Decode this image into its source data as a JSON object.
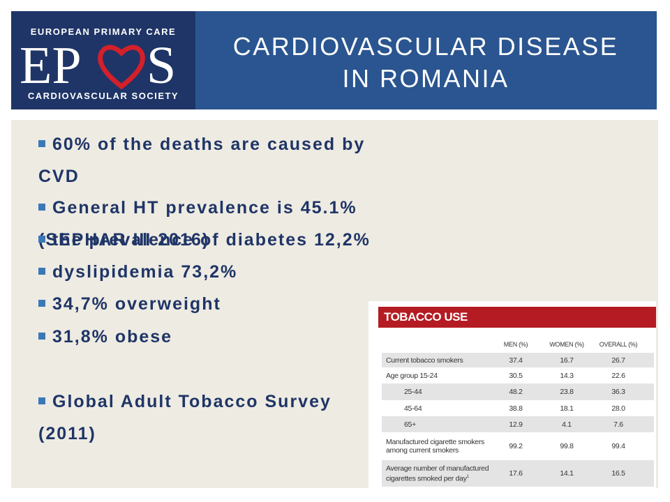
{
  "header": {
    "logo": {
      "top": "EUROPEAN PRIMARY CARE",
      "left": "EP",
      "right": "S",
      "bottom": "CARDIOVASCULAR SOCIETY"
    },
    "title": [
      "CARDIOVASCULAR DISEASE",
      "IN ROMANIA"
    ]
  },
  "bullets": [
    "60% of the deaths are caused by CVD",
    "General HT prevalence is 45.1% (SEPHAR III 2016)",
    "the prevalence of diabetes 12,2%",
    "dyslipidemia  73,2%",
    "34,7% overweight",
    "31,8% obese",
    "Global Adult Tobacco Survey (2011)"
  ],
  "table": {
    "title": "TOBACCO USE",
    "columns": [
      "MEN (%)",
      "WOMEN (%)",
      "OVERALL (%)"
    ],
    "rows": [
      {
        "label": "Current tobacco smokers",
        "values": [
          "37.4",
          "16.7",
          "26.7"
        ]
      },
      {
        "label": "Age group 15-24",
        "values": [
          "30.5",
          "14.3",
          "22.6"
        ]
      },
      {
        "label": "25-44",
        "values": [
          "48.2",
          "23.8",
          "36.3"
        ]
      },
      {
        "label": "45-64",
        "values": [
          "38.8",
          "18.1",
          "28.0"
        ]
      },
      {
        "label": "65+",
        "values": [
          "12.9",
          "4.1",
          "7.6"
        ]
      },
      {
        "label": "Manufactured cigarette smokers among current smokers",
        "values": [
          "99.2",
          "99.8",
          "99.4"
        ]
      },
      {
        "label": "Average number of manufactured cigarettes smoked per day",
        "note": "1",
        "values": [
          "17.6",
          "14.1",
          "16.5"
        ]
      }
    ]
  }
}
